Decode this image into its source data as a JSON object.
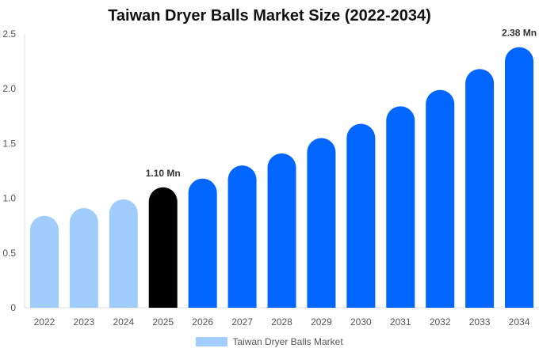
{
  "chart_data": {
    "type": "bar",
    "title": "Taiwan Dryer Balls Market Size (2022-2034)",
    "xlabel": "",
    "ylabel": "",
    "categories": [
      "2022",
      "2023",
      "2024",
      "2025",
      "2026",
      "2027",
      "2028",
      "2029",
      "2030",
      "2031",
      "2032",
      "2033",
      "2034"
    ],
    "series": [
      {
        "name": "Taiwan Dryer Balls Market",
        "values": [
          0.84,
          0.91,
          0.99,
          1.1,
          1.18,
          1.3,
          1.41,
          1.55,
          1.68,
          1.84,
          1.99,
          2.18,
          2.38
        ]
      }
    ],
    "ylim": [
      0,
      2.5
    ],
    "yticks": [
      "0",
      "0.5",
      "1.0",
      "1.5",
      "2.0",
      "2.5"
    ],
    "grid": false,
    "legend_position": "bottom",
    "data_labels": [
      {
        "category": "2025",
        "text": "1.10 Mn"
      },
      {
        "category": "2034",
        "text": "2.38 Mn"
      }
    ],
    "colors": {
      "historical": "#a0cdfc",
      "current": "#000000",
      "forecast": "#0066ff",
      "legend": "#a0cdfc"
    },
    "bar_roles": [
      "historical",
      "historical",
      "historical",
      "current",
      "forecast",
      "forecast",
      "forecast",
      "forecast",
      "forecast",
      "forecast",
      "forecast",
      "forecast",
      "forecast"
    ]
  }
}
